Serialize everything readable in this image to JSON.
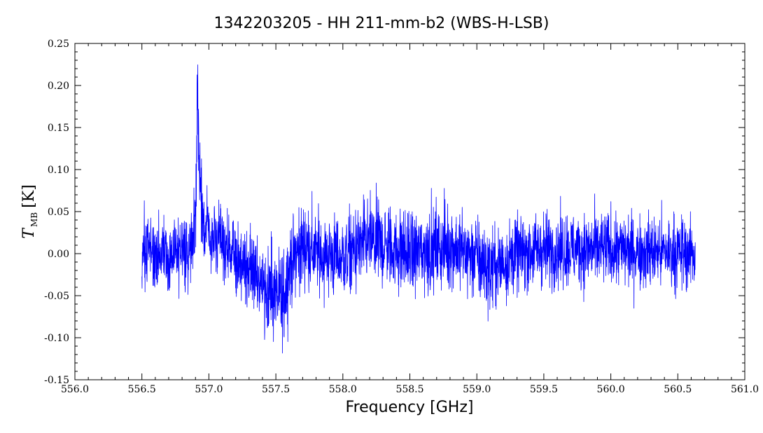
{
  "chart_data": {
    "type": "line",
    "title": "1342203205 - HH 211-mm-b2 (WBS-H-LSB)",
    "xlabel": "Frequency [GHz]",
    "ylabel": {
      "symbol": "T",
      "subscript": "MB",
      "unit": "[K]"
    },
    "xlim": [
      556.0,
      561.0
    ],
    "ylim": [
      -0.15,
      0.25
    ],
    "x_ticks": [
      556.0,
      556.5,
      557.0,
      557.5,
      558.0,
      558.5,
      559.0,
      559.5,
      560.0,
      560.5,
      561.0
    ],
    "x_tick_labels": [
      "556.0",
      "556.5",
      "557.0",
      "557.5",
      "558.0",
      "558.5",
      "559.0",
      "559.5",
      "560.0",
      "560.5",
      "561.0"
    ],
    "y_ticks": [
      -0.15,
      -0.1,
      -0.05,
      0.0,
      0.05,
      0.1,
      0.15,
      0.2,
      0.25
    ],
    "y_tick_labels": [
      "-0.15",
      "-0.10",
      "-0.05",
      "0.00",
      "0.05",
      "0.10",
      "0.15",
      "0.20",
      "0.25"
    ],
    "grid": false,
    "series": [
      {
        "color": "#0000ff",
        "x_range": [
          556.5,
          560.63
        ],
        "profile": [
          [
            556.5,
            0.0,
            0.022
          ],
          [
            556.7,
            0.0,
            0.022
          ],
          [
            556.85,
            0.005,
            0.022
          ],
          [
            556.9,
            0.04,
            0.022
          ],
          [
            556.915,
            0.18,
            0.03
          ],
          [
            556.93,
            0.1,
            0.025
          ],
          [
            556.95,
            0.05,
            0.022
          ],
          [
            557.0,
            0.02,
            0.02
          ],
          [
            557.1,
            0.01,
            0.02
          ],
          [
            557.2,
            -0.005,
            0.022
          ],
          [
            557.3,
            -0.02,
            0.025
          ],
          [
            557.4,
            -0.035,
            0.025
          ],
          [
            557.55,
            -0.06,
            0.028
          ],
          [
            557.6,
            -0.015,
            0.025
          ],
          [
            557.7,
            0.01,
            0.025
          ],
          [
            557.8,
            0.0,
            0.025
          ],
          [
            558.0,
            -0.005,
            0.025
          ],
          [
            558.2,
            0.015,
            0.025
          ],
          [
            558.5,
            0.0,
            0.025
          ],
          [
            558.8,
            0.01,
            0.025
          ],
          [
            559.0,
            -0.005,
            0.025
          ],
          [
            559.1,
            -0.02,
            0.025
          ],
          [
            559.3,
            0.0,
            0.022
          ],
          [
            559.5,
            0.005,
            0.022
          ],
          [
            560.0,
            0.005,
            0.022
          ],
          [
            560.63,
            0.0,
            0.022
          ]
        ]
      }
    ]
  }
}
